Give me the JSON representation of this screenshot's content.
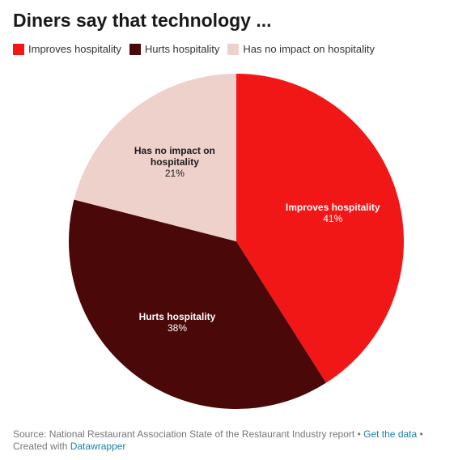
{
  "chart_data": {
    "type": "pie",
    "title": "Diners say that technology ...",
    "categories": [
      "Improves hospitality",
      "Hurts hospitality",
      "Has no impact on hospitality"
    ],
    "values": [
      41,
      38,
      21
    ],
    "value_labels": [
      "41%",
      "38%",
      "21%"
    ],
    "colors": [
      "#f21717",
      "#4a0808",
      "#efd1cc"
    ],
    "label_colors": [
      "#ffffff",
      "#ffffff",
      "#1a1a1a"
    ]
  },
  "footer": {
    "source": "Source: National Restaurant Association State of the Restaurant Industry report",
    "separator": "•",
    "get_data": "Get the data",
    "created_with": "Created with",
    "tool": "Datawrapper"
  }
}
